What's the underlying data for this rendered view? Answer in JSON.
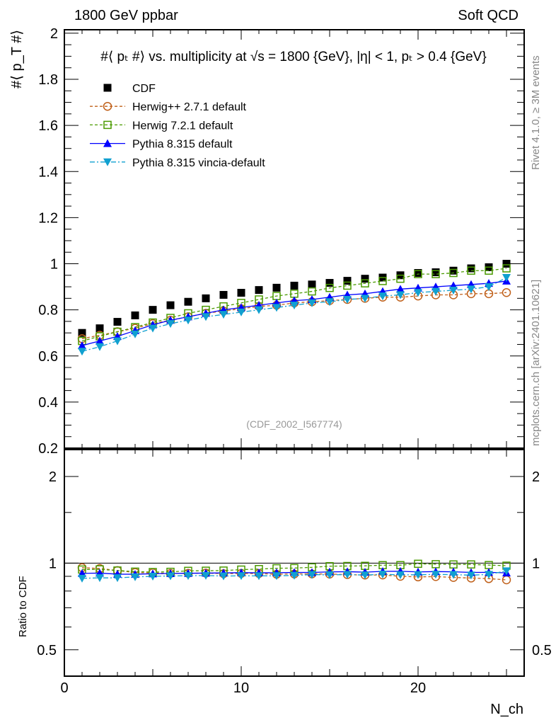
{
  "chart_data": {
    "type": "line",
    "header_left": "1800 GeV ppbar",
    "header_right": "Soft QCD",
    "title": "#⟨ p_T #⟩ vs. multiplicity at √s = 1800 {GeV}, |η| < 1, p_T > 0.4 {GeV}",
    "ylabel": "#⟨ p_T #⟩",
    "xlabel": "N_ch",
    "ratio_ylabel": "Ratio to CDF",
    "side_label_top": "Rivet 4.1.0, ≥ 3M events",
    "side_label_bottom": "mcplots.cern.ch [arXiv:2401.10621]",
    "analysis_id": "(CDF_2002_I567774)",
    "xlim": [
      0,
      26
    ],
    "ylim": [
      0.2,
      2.015
    ],
    "ratio_ylim": [
      0.405,
      2.48
    ],
    "x_ticks": [
      "0",
      "10",
      "20"
    ],
    "y_ticks": [
      "0.2",
      "0.4",
      "0.6",
      "0.8",
      "1",
      "1.2",
      "1.4",
      "1.6",
      "1.8",
      "2"
    ],
    "ratio_ticks": [
      "0.5",
      "1",
      "2"
    ],
    "x": [
      1,
      2,
      3,
      4,
      5,
      6,
      7,
      8,
      9,
      10,
      11,
      12,
      13,
      14,
      15,
      16,
      17,
      18,
      19,
      20,
      21,
      22,
      23,
      24,
      25
    ],
    "series": [
      {
        "name": "CDF",
        "color": "#000000",
        "marker": "square-filled",
        "line": "none",
        "values": [
          0.7,
          0.72,
          0.748,
          0.776,
          0.8,
          0.82,
          0.835,
          0.85,
          0.865,
          0.874,
          0.886,
          0.896,
          0.905,
          0.91,
          0.917,
          0.926,
          0.935,
          0.94,
          0.95,
          0.96,
          0.963,
          0.97,
          0.98,
          0.985,
          1.0
        ]
      },
      {
        "name": "Herwig++ 2.7.1 default",
        "color": "#c0601a",
        "marker": "circle-open",
        "line": "dashed",
        "values": [
          0.675,
          0.69,
          0.705,
          0.72,
          0.74,
          0.755,
          0.77,
          0.785,
          0.795,
          0.805,
          0.815,
          0.82,
          0.83,
          0.835,
          0.84,
          0.845,
          0.85,
          0.855,
          0.855,
          0.86,
          0.865,
          0.865,
          0.87,
          0.87,
          0.875
        ]
      },
      {
        "name": "Herwig 7.2.1 default",
        "color": "#4a9a00",
        "marker": "square-open",
        "line": "dashed",
        "values": [
          0.665,
          0.685,
          0.705,
          0.725,
          0.745,
          0.765,
          0.785,
          0.8,
          0.815,
          0.83,
          0.845,
          0.86,
          0.87,
          0.88,
          0.895,
          0.905,
          0.915,
          0.925,
          0.935,
          0.955,
          0.955,
          0.96,
          0.97,
          0.97,
          0.98
        ]
      },
      {
        "name": "Pythia 8.315 default",
        "color": "#0000ff",
        "marker": "triangle-up",
        "line": "solid",
        "values": [
          0.645,
          0.665,
          0.685,
          0.71,
          0.735,
          0.755,
          0.77,
          0.785,
          0.8,
          0.81,
          0.82,
          0.83,
          0.84,
          0.845,
          0.855,
          0.865,
          0.87,
          0.88,
          0.89,
          0.895,
          0.9,
          0.905,
          0.91,
          0.915,
          0.925
        ]
      },
      {
        "name": "Pythia 8.315 vincia-default",
        "color": "#10a0d0",
        "marker": "triangle-down",
        "line": "dashdot",
        "values": [
          0.62,
          0.64,
          0.665,
          0.695,
          0.72,
          0.74,
          0.755,
          0.77,
          0.78,
          0.79,
          0.8,
          0.81,
          0.82,
          0.83,
          0.835,
          0.845,
          0.85,
          0.86,
          0.865,
          0.875,
          0.88,
          0.885,
          0.89,
          0.9,
          0.94
        ]
      }
    ]
  }
}
